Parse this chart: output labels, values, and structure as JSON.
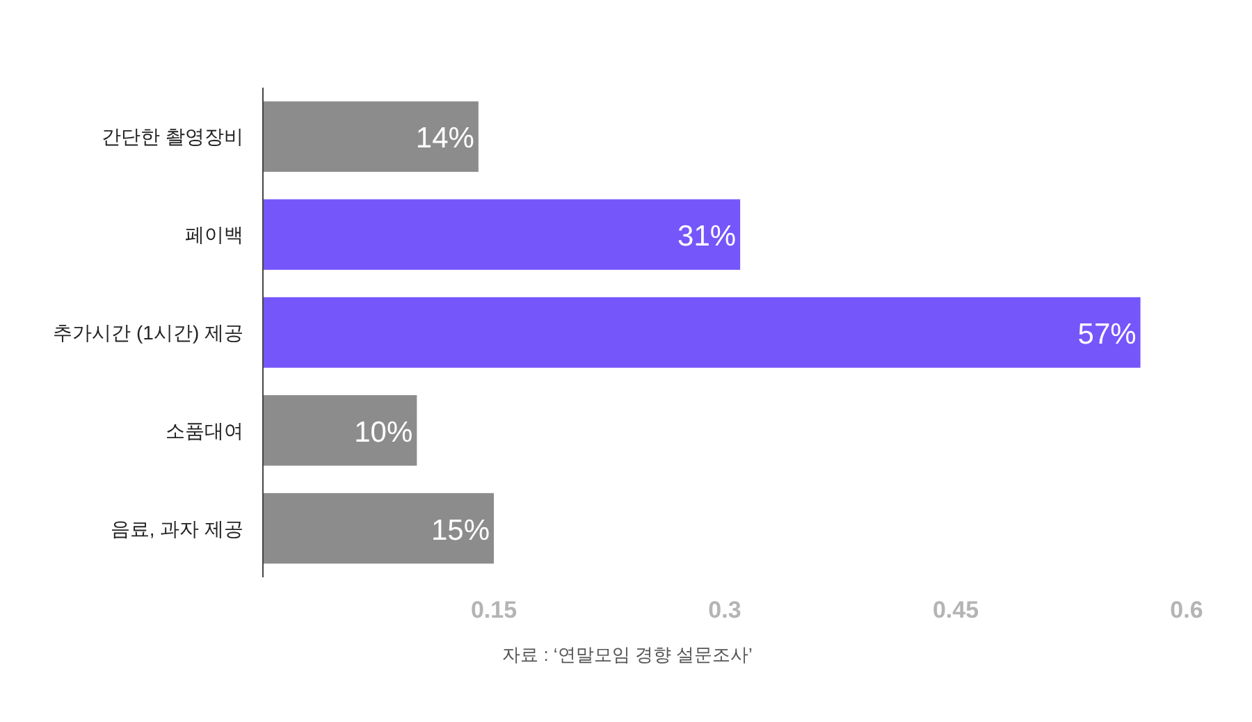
{
  "chart_data": {
    "type": "bar",
    "orientation": "horizontal",
    "categories": [
      "간단한 촬영장비",
      "페이백",
      "추가시간 (1시간) 제공",
      "소품대여",
      "음료, 과자 제공"
    ],
    "values": [
      0.14,
      0.31,
      0.57,
      0.1,
      0.15
    ],
    "colors": [
      "#8c8c8c",
      "#7556fb",
      "#7556fb",
      "#8c8c8c",
      "#8c8c8c"
    ],
    "value_labels": [
      "14%",
      "31%",
      "57%",
      "10%",
      "15%"
    ],
    "xlim": [
      0,
      0.6
    ],
    "xticks": [
      0.15,
      0.3,
      0.45,
      0.6
    ],
    "grid": false,
    "annotations": [
      "자료 : ‘연말모임 경향 설문조사’"
    ]
  }
}
